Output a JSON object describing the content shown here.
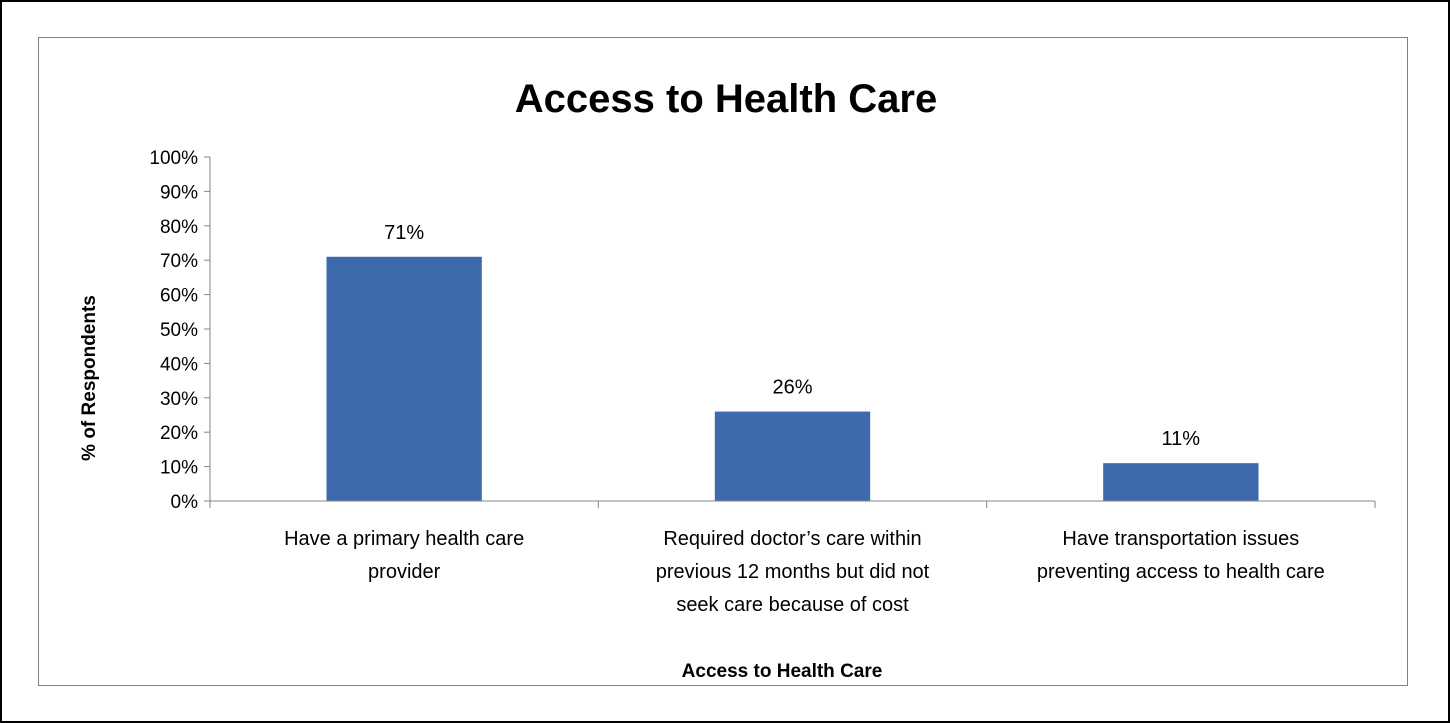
{
  "chart_data": {
    "type": "bar",
    "title": "Access to Health Care",
    "xlabel": "Access to Health Care",
    "ylabel": "% of Respondents",
    "categories": [
      [
        "Have a primary health care",
        "provider"
      ],
      [
        "Required doctor’s care within",
        "previous 12 months but did not",
        "seek care because of cost"
      ],
      [
        "Have transportation issues",
        "preventing access to health care"
      ]
    ],
    "values": [
      71,
      26,
      11
    ],
    "data_labels": [
      "71%",
      "26%",
      "11%"
    ],
    "ylim": [
      0,
      100
    ],
    "yticks": [
      0,
      10,
      20,
      30,
      40,
      50,
      60,
      70,
      80,
      90,
      100
    ],
    "ytick_labels": [
      "0%",
      "10%",
      "20%",
      "30%",
      "40%",
      "50%",
      "60%",
      "70%",
      "80%",
      "90%",
      "100%"
    ],
    "grid": false,
    "legend": "none",
    "bar_color": "#3e6aad"
  }
}
